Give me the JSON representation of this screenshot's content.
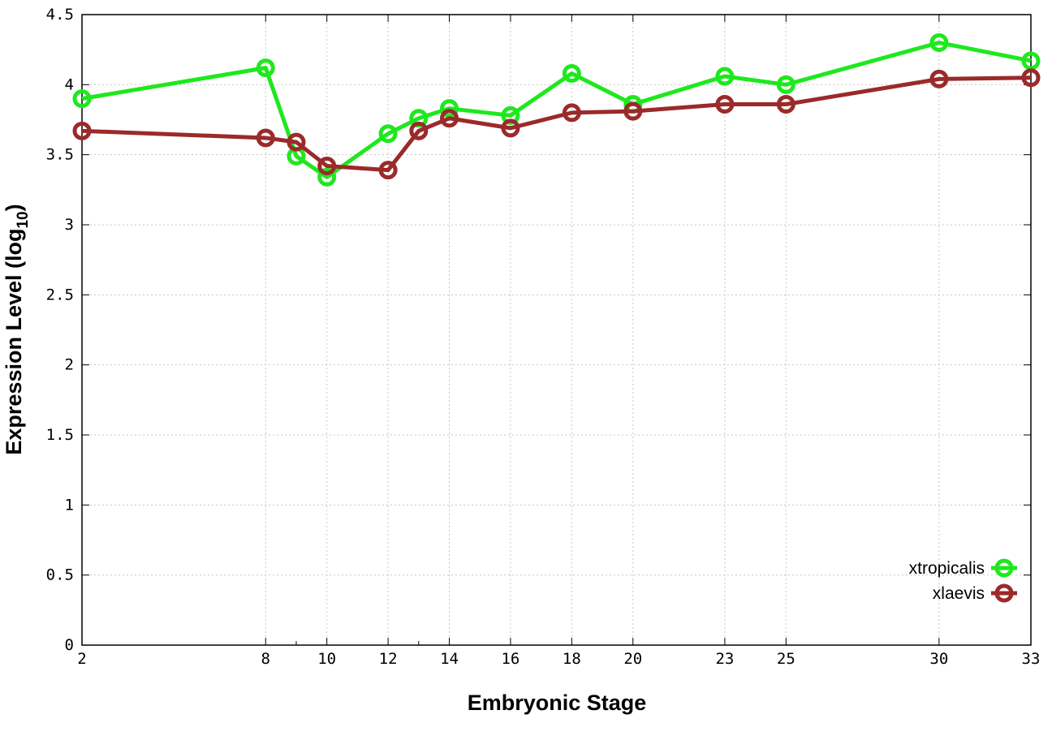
{
  "chart_data": {
    "type": "line",
    "xlabel": "Embryonic Stage",
    "ylabel": "Expression Level (log",
    "ylabel_sub": "10",
    "ylabel_end": ")",
    "xlim": [
      2,
      33
    ],
    "ylim": [
      0,
      4.5
    ],
    "x_ticks": [
      2,
      8,
      10,
      12,
      14,
      16,
      18,
      20,
      23,
      25,
      30,
      33
    ],
    "x_minor_ticks": [
      9,
      13
    ],
    "y_ticks": [
      "0",
      "0.5",
      "1",
      "1.5",
      "2",
      "2.5",
      "3",
      "3.5",
      "4",
      "4.5"
    ],
    "grid": true,
    "legend_position": "bottom-right",
    "x": [
      2,
      8,
      9,
      10,
      12,
      13,
      14,
      16,
      18,
      20,
      23,
      25,
      30,
      33
    ],
    "series": [
      {
        "name": "xtropicalis",
        "color": "#1ee81e",
        "values": [
          3.9,
          4.12,
          3.49,
          3.34,
          3.65,
          3.76,
          3.83,
          3.78,
          4.08,
          3.86,
          4.06,
          4.0,
          4.3,
          4.17
        ]
      },
      {
        "name": "xlaevis",
        "color": "#9b2a2a",
        "values": [
          3.67,
          3.62,
          3.59,
          3.42,
          3.39,
          3.67,
          3.76,
          3.69,
          3.8,
          3.81,
          3.86,
          3.86,
          4.04,
          4.05
        ]
      }
    ]
  }
}
